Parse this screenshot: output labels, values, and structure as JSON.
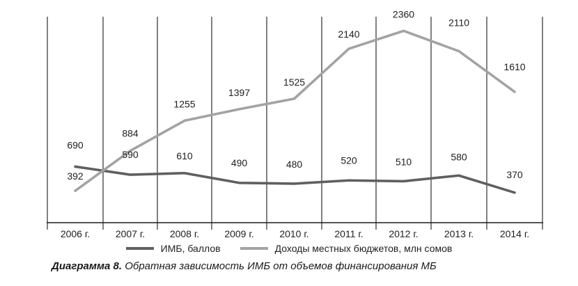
{
  "chart_data": {
    "type": "line",
    "categories": [
      "2006 г.",
      "2007 г.",
      "2008 г.",
      "2009 г.",
      "2010 г.",
      "2011 г.",
      "2012 г.",
      "2013 г.",
      "2014 г."
    ],
    "series": [
      {
        "name": "ИМБ, баллов",
        "values": [
          690,
          590,
          610,
          490,
          480,
          520,
          510,
          580,
          370
        ],
        "color": "#5f5f5f"
      },
      {
        "name": "Доходы местных бюджетов, млн сомов",
        "values": [
          392,
          884,
          1255,
          1397,
          1525,
          2140,
          2360,
          2110,
          1610
        ],
        "color": "#a3a3a3"
      }
    ],
    "title": "",
    "xlabel": "",
    "ylabel": "",
    "ylim": [
      0,
      2500
    ],
    "grid": "vertical",
    "legend_position": "bottom"
  },
  "caption": {
    "label": "Диаграмма 8.",
    "text": "Обратная зависимость ИМБ от объемов финансирования МБ"
  }
}
